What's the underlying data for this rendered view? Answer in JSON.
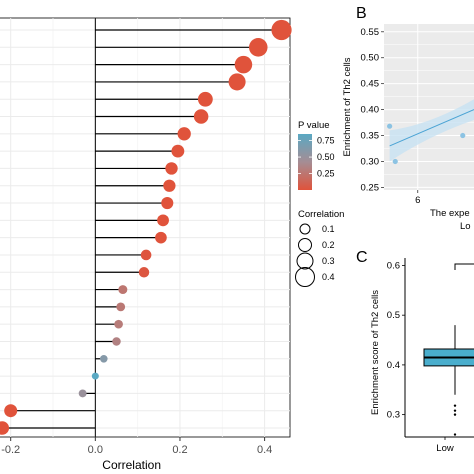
{
  "colors": {
    "p_high": "#5aa9c3",
    "p_mid": "#a58d94",
    "p_low": "#e0533b",
    "stem": "#000000",
    "grid": "#ebebeb",
    "boxplot_fill": "#4aaecd",
    "scatter_line": "#4aa3d4",
    "scatter_band": "#c8e2f2"
  },
  "panel_labels": {
    "b": "B",
    "c": "C"
  },
  "chart_data": [
    {
      "type": "lollipop",
      "xlabel": "Correlation",
      "xlim": [
        -0.23,
        0.46
      ],
      "xticks": [
        "-0.2",
        "0.0",
        "0.2",
        "0.4"
      ],
      "xtick_values": [
        -0.2,
        0.0,
        0.2,
        0.4
      ],
      "grid": true,
      "values": [
        0.44,
        0.385,
        0.35,
        0.335,
        0.26,
        0.25,
        0.21,
        0.195,
        0.18,
        0.175,
        0.17,
        0.16,
        0.155,
        0.12,
        0.115,
        0.065,
        0.06,
        0.055,
        0.05,
        0.02,
        0.0,
        -0.03,
        -0.2,
        -0.22
      ],
      "p_values": [
        0.0,
        0.0,
        0.0,
        0.0,
        0.0,
        0.0,
        0.0,
        0.0,
        0.0,
        0.0,
        0.0,
        0.0,
        0.0,
        0.02,
        0.03,
        0.3,
        0.32,
        0.35,
        0.4,
        0.65,
        0.85,
        0.55,
        0.0,
        0.0
      ],
      "legend": {
        "p_title": "P value",
        "p_ticks": [
          "0.75",
          "0.50",
          "0.25"
        ],
        "p_tick_values": [
          0.75,
          0.5,
          0.25
        ],
        "size_title": "Correlation",
        "size_items": [
          "0.1",
          "0.2",
          "0.3",
          "0.4"
        ],
        "size_values": [
          0.1,
          0.2,
          0.3,
          0.4
        ],
        "placement": "right"
      }
    },
    {
      "type": "scatter",
      "panel": "B",
      "ylabel": "Enrichment of Th2 cells",
      "xlabel": "The expe",
      "xlabel2": "Lo",
      "yticks": [
        "0.55",
        "0.50",
        "0.45",
        "0.40",
        "0.35",
        "0.30",
        "0.25"
      ],
      "ytick_values": [
        0.55,
        0.5,
        0.45,
        0.4,
        0.35,
        0.3,
        0.25
      ],
      "ylim": [
        0.245,
        0.565
      ],
      "xticks": [
        "6"
      ],
      "xtick_values": [
        6
      ],
      "xlim": [
        5.4,
        7.0
      ],
      "points": [
        {
          "x": 5.5,
          "y": 0.368
        },
        {
          "x": 5.6,
          "y": 0.3
        },
        {
          "x": 6.8,
          "y": 0.35
        }
      ],
      "fit_line": [
        {
          "x": 5.5,
          "y": 0.33
        },
        {
          "x": 7.0,
          "y": 0.4
        }
      ]
    },
    {
      "type": "boxplot",
      "panel": "C",
      "ylabel": "Enrichment score of Th2 cells",
      "yticks": [
        "0.6",
        "0.5",
        "0.4",
        "0.3"
      ],
      "ytick_values": [
        0.6,
        0.5,
        0.4,
        0.3
      ],
      "ylim": [
        0.255,
        0.615
      ],
      "categories": [
        "Low"
      ],
      "box": {
        "q1": 0.398,
        "median": 0.415,
        "q3": 0.432,
        "whisker_low": 0.34,
        "whisker_high": 0.48
      },
      "outliers": [
        0.318,
        0.308,
        0.3,
        0.26
      ]
    }
  ]
}
